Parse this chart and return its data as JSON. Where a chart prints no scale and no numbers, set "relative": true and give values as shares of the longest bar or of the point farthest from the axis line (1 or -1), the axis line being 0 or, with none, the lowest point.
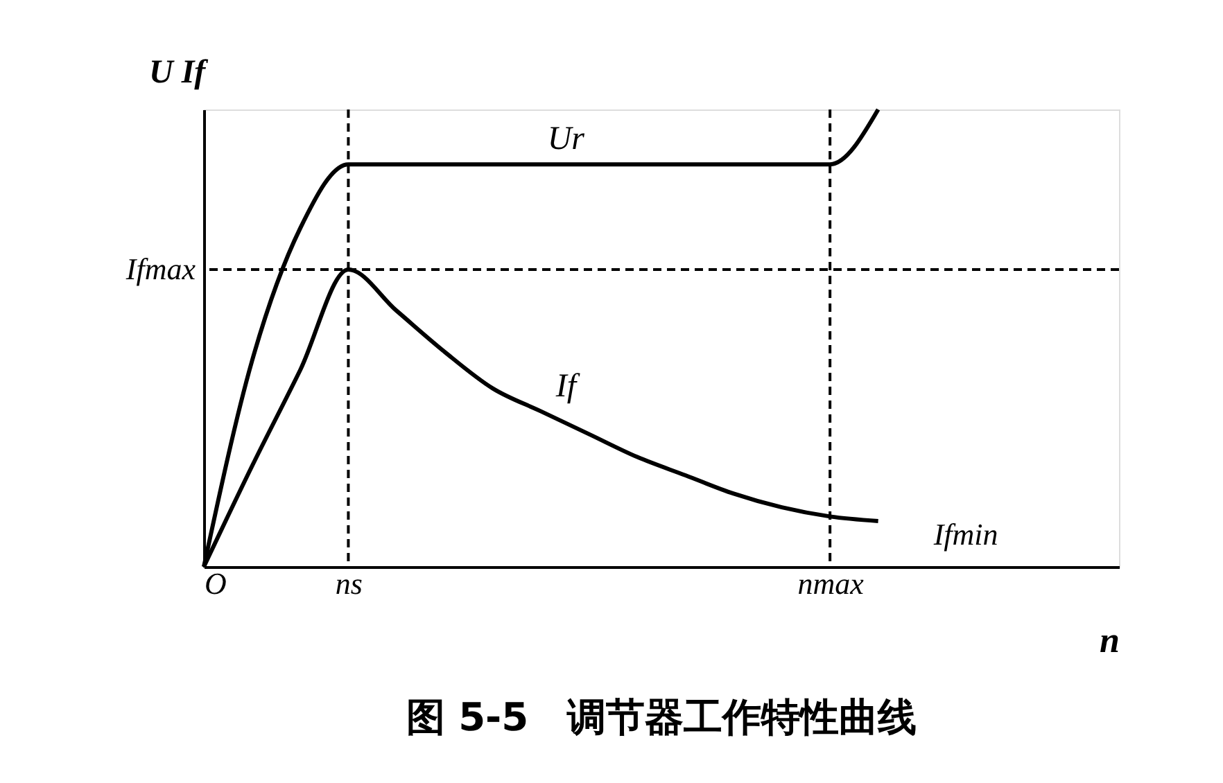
{
  "chart_data": {
    "type": "line",
    "relative": true,
    "title": "图 5-5　调节器工作特性曲线",
    "xlabel": "n",
    "ylabel": "U  If",
    "categories": [
      "O",
      null,
      null,
      "ns",
      null,
      null,
      null,
      null,
      null,
      null,
      null,
      null,
      null,
      "nmax",
      null,
      null,
      null,
      null,
      null,
      null
    ],
    "series": [
      {
        "name": "Ur",
        "color": "#000000",
        "values": [
          0,
          0.45,
          0.74,
          0.88,
          0.88,
          0.88,
          0.88,
          0.88,
          0.88,
          0.88,
          0.88,
          0.88,
          0.88,
          0.88,
          1.0,
          null,
          null,
          null,
          null,
          null
        ]
      },
      {
        "name": "If",
        "color": "#000000",
        "values": [
          0,
          0.22,
          0.43,
          0.65,
          0.56,
          0.47,
          0.39,
          0.34,
          0.29,
          0.24,
          0.2,
          0.16,
          0.13,
          0.11,
          0.1,
          null,
          null,
          null,
          null,
          null
        ]
      }
    ],
    "ref_lines": [
      {
        "axis": "x",
        "value": "ns",
        "line_style": "dashed",
        "color": "#000000"
      },
      {
        "axis": "x",
        "value": "nmax",
        "line_style": "dashed",
        "color": "#000000"
      },
      {
        "axis": "y",
        "value": 0.65,
        "label": "Ifmax",
        "line_style": "dashed",
        "color": "#000000"
      }
    ],
    "annotations": [
      "Ifmin"
    ],
    "grid": false,
    "legend": false,
    "marker": "none",
    "line_style": "solid"
  }
}
